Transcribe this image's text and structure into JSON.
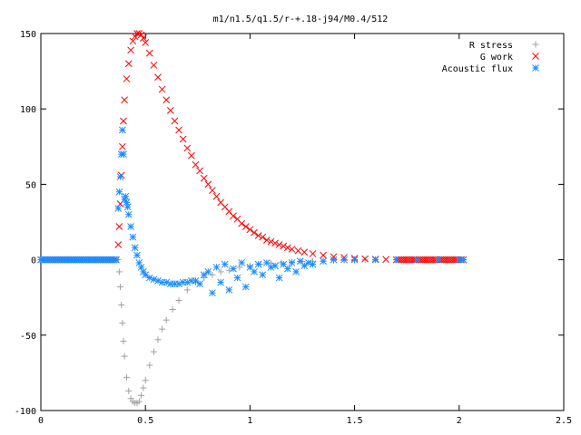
{
  "chart_data": {
    "type": "scatter",
    "title": "m1/n1.5/q1.5/r-+.18-j94/M0.4/512",
    "xlabel": "",
    "ylabel": "",
    "xlim": [
      0,
      2.5
    ],
    "ylim": [
      -100,
      150
    ],
    "xticks": [
      {
        "value": 0,
        "label": "0"
      },
      {
        "value": 0.5,
        "label": "0.5"
      },
      {
        "value": 1,
        "label": "1"
      },
      {
        "value": 1.5,
        "label": "1.5"
      },
      {
        "value": 2,
        "label": "2"
      },
      {
        "value": 2.5,
        "label": "2.5"
      }
    ],
    "yticks": [
      {
        "value": -100,
        "label": "-100"
      },
      {
        "value": -50,
        "label": "-50"
      },
      {
        "value": 0,
        "label": "0"
      },
      {
        "value": 50,
        "label": "50"
      },
      {
        "value": 100,
        "label": "100"
      },
      {
        "value": 150,
        "label": "150"
      }
    ],
    "grid": false,
    "legend_position": "top-right",
    "series": [
      {
        "name": "R stress",
        "marker": "plus",
        "color": "#a0a0a0",
        "x": [
          0.37,
          0.375,
          0.38,
          0.385,
          0.39,
          0.395,
          0.4,
          0.41,
          0.42,
          0.43,
          0.44,
          0.45,
          0.46,
          0.47,
          0.48,
          0.49,
          0.5,
          0.52,
          0.54,
          0.56,
          0.58,
          0.6,
          0.63,
          0.66,
          0.7,
          0.74,
          0.78,
          0.82,
          0.86,
          0.9,
          0.95,
          1.0,
          1.05,
          1.1,
          1.15,
          1.2,
          1.25,
          1.3,
          1.35,
          1.4,
          1.45,
          1.5,
          1.55,
          1.6,
          1.7,
          1.8,
          1.9,
          2.0
        ],
        "y": [
          0,
          -8,
          -18,
          -30,
          -42,
          -54,
          -64,
          -78,
          -87,
          -92,
          -94,
          -95,
          -95,
          -94,
          -90,
          -85,
          -80,
          -70,
          -61,
          -53,
          -46,
          -40,
          -33,
          -27,
          -20,
          -15,
          -12,
          -10,
          -8,
          -7,
          -5,
          -4,
          -3,
          -2.5,
          -2,
          -1.5,
          -1.2,
          -1,
          -0.8,
          -0.5,
          -0.3,
          -0.2,
          -0.1,
          0,
          0,
          0,
          0,
          0
        ]
      },
      {
        "name": "G work",
        "marker": "cross",
        "color": "#ff0000",
        "x": [
          0.37,
          0.375,
          0.38,
          0.385,
          0.39,
          0.395,
          0.4,
          0.41,
          0.42,
          0.43,
          0.44,
          0.45,
          0.46,
          0.47,
          0.48,
          0.49,
          0.5,
          0.52,
          0.54,
          0.56,
          0.58,
          0.6,
          0.62,
          0.64,
          0.66,
          0.68,
          0.7,
          0.72,
          0.74,
          0.76,
          0.78,
          0.8,
          0.82,
          0.84,
          0.86,
          0.88,
          0.9,
          0.92,
          0.94,
          0.96,
          0.98,
          1.0,
          1.02,
          1.04,
          1.06,
          1.08,
          1.1,
          1.12,
          1.14,
          1.16,
          1.18,
          1.2,
          1.23,
          1.26,
          1.3,
          1.35,
          1.4,
          1.45,
          1.5,
          1.55,
          1.6,
          1.65,
          1.7
        ],
        "y": [
          10,
          22,
          37,
          56,
          75,
          92,
          106,
          120,
          130,
          139,
          145,
          148,
          150,
          150,
          149,
          147,
          144,
          137,
          129,
          121,
          113,
          106,
          99,
          92,
          86,
          80,
          74,
          69,
          63,
          59,
          54,
          50,
          46,
          42,
          38,
          35,
          32,
          29,
          27,
          24,
          22,
          20,
          18,
          16,
          15,
          13,
          12,
          11,
          10,
          9,
          8,
          7,
          6,
          5,
          4,
          3,
          2,
          1.5,
          1,
          0.6,
          0.4,
          0.2,
          0
        ]
      },
      {
        "name": "Acoustic flux",
        "marker": "star",
        "color": "#1a8cff",
        "x": [
          0.37,
          0.375,
          0.38,
          0.385,
          0.39,
          0.395,
          0.4,
          0.405,
          0.41,
          0.415,
          0.42,
          0.43,
          0.44,
          0.45,
          0.46,
          0.47,
          0.48,
          0.49,
          0.5,
          0.52,
          0.54,
          0.56,
          0.58,
          0.6,
          0.62,
          0.64,
          0.66,
          0.68,
          0.7,
          0.72,
          0.74,
          0.76,
          0.78,
          0.8,
          0.82,
          0.84,
          0.86,
          0.88,
          0.9,
          0.92,
          0.94,
          0.96,
          0.98,
          1.0,
          1.02,
          1.04,
          1.06,
          1.08,
          1.1,
          1.12,
          1.14,
          1.16,
          1.18,
          1.2,
          1.22,
          1.24,
          1.26,
          1.28,
          1.3,
          1.35,
          1.4,
          1.45,
          1.5,
          1.6,
          1.7,
          1.8,
          1.9,
          2.0,
          2.02
        ],
        "y": [
          34,
          45,
          55,
          70,
          86,
          70,
          40,
          42,
          38,
          35,
          30,
          22,
          15,
          8,
          3,
          -2,
          -5,
          -8,
          -10,
          -12,
          -13,
          -14,
          -15,
          -15,
          -16,
          -16,
          -16,
          -15,
          -15,
          -14,
          -14,
          -16,
          -10,
          -8,
          -22,
          -5,
          -15,
          -3,
          -20,
          -6,
          -12,
          -2,
          -18,
          -5,
          -8,
          -3,
          -10,
          -2,
          -5,
          -4,
          -12,
          -3,
          -6,
          -2,
          -8,
          -1,
          -4,
          -2,
          -3,
          -1,
          0,
          0,
          0,
          0,
          0,
          0,
          0,
          0,
          0
        ]
      }
    ]
  }
}
